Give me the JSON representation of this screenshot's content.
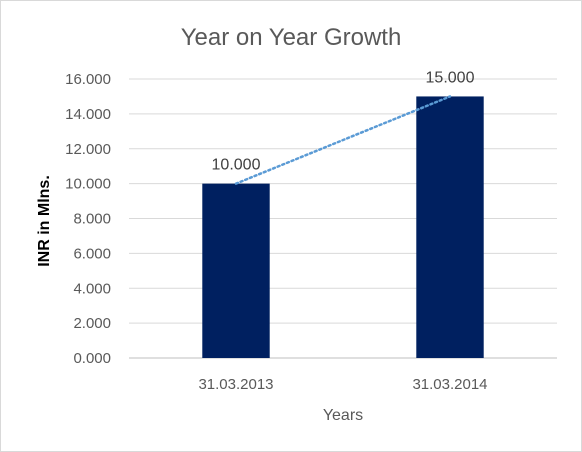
{
  "chart_data": {
    "type": "bar",
    "title": "Year on Year Growth",
    "xlabel": "Years",
    "ylabel": "INR in Mlns.",
    "categories": [
      "31.03.2013",
      "31.03.2014"
    ],
    "values": [
      10,
      15
    ],
    "data_labels": [
      "10.000",
      "15.000"
    ],
    "ylim": [
      0,
      16
    ],
    "yticks": [
      0,
      2,
      4,
      6,
      8,
      10,
      12,
      14,
      16
    ],
    "ytick_labels": [
      "0.000",
      "2.000",
      "4.000",
      "6.000",
      "8.000",
      "10.000",
      "12.000",
      "14.000",
      "16.000"
    ],
    "grid": true,
    "legend": "none",
    "trendline": "linear, dotted",
    "colors": {
      "bar": "#002060",
      "trendline": "#5B9BD5"
    }
  }
}
